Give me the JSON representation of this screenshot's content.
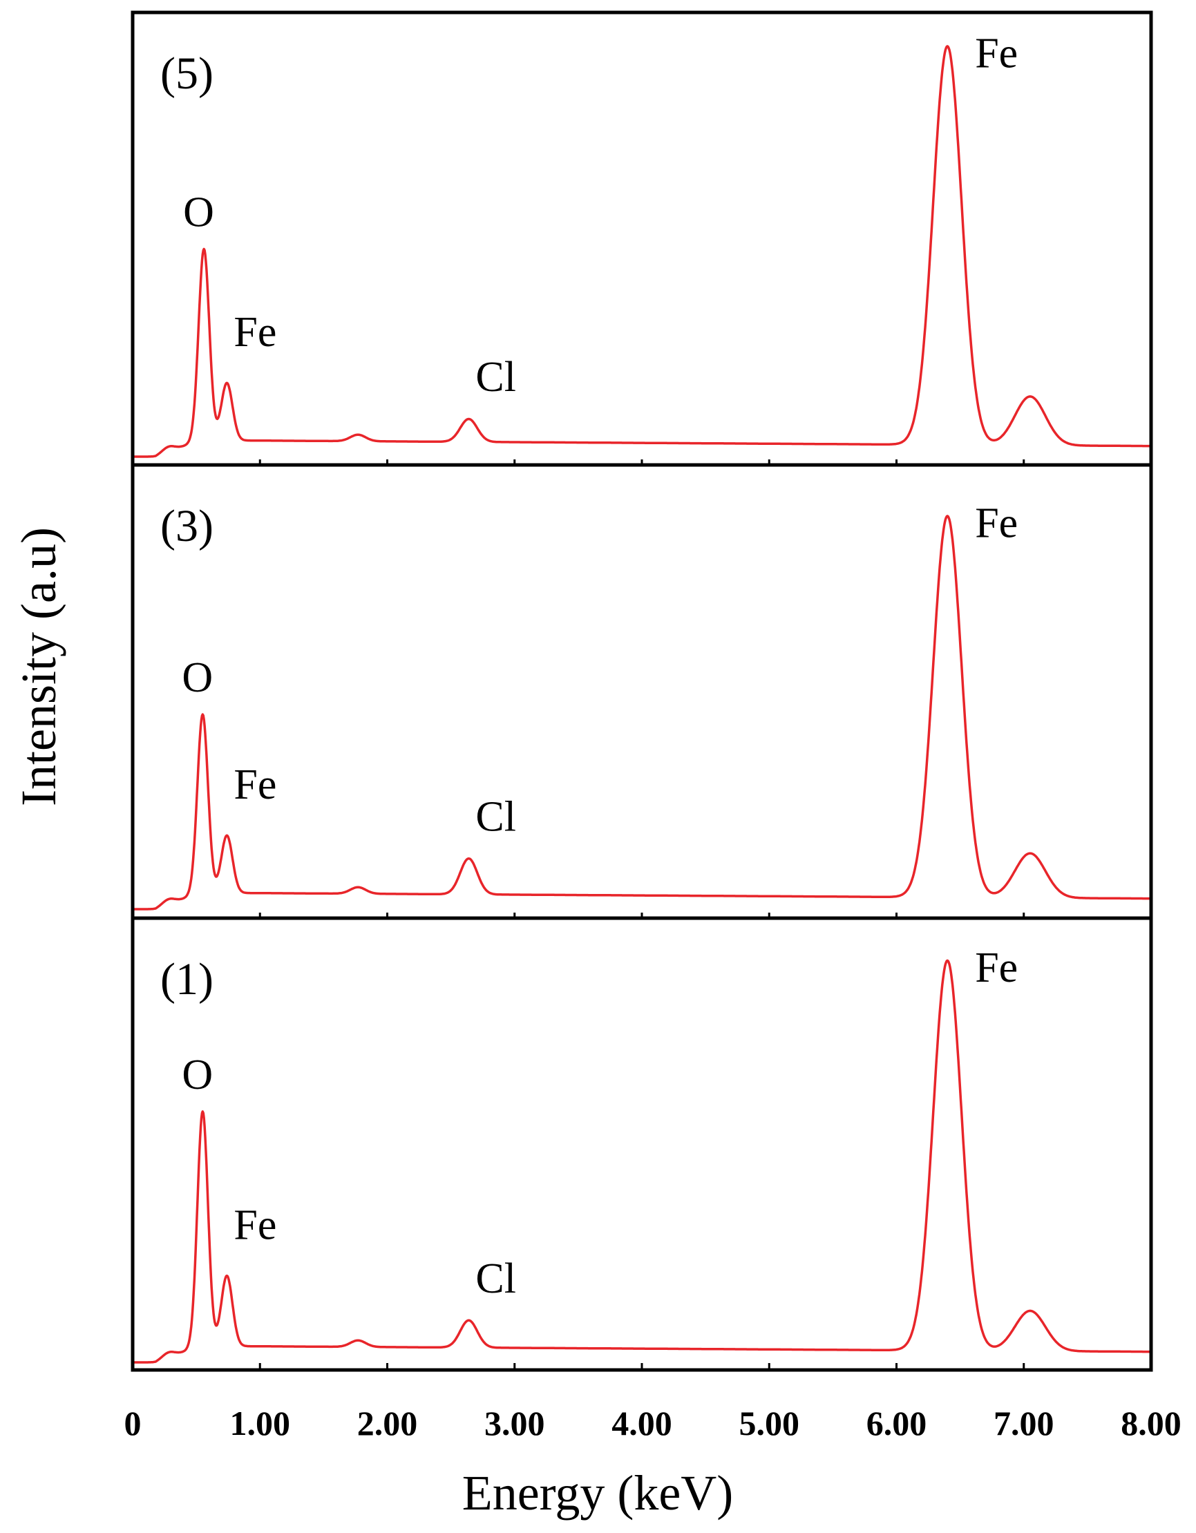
{
  "chart_data": {
    "type": "line",
    "title": "",
    "xlabel": "Energy (keV)",
    "ylabel": "Intensity (a.u)",
    "xlim": [
      0,
      8.0
    ],
    "x_ticks": [
      "0",
      "1.00",
      "2.00",
      "3.00",
      "4.00",
      "5.00",
      "6.00",
      "7.00",
      "8.00"
    ],
    "y_ticks": [],
    "line_color": "#e8252a",
    "grid": false,
    "legend": "none",
    "panels": [
      {
        "label": "(5)",
        "baseline": 0.03,
        "peaks": [
          {
            "element": "O",
            "energy": 0.56,
            "intensity": 0.47,
            "label": "O"
          },
          {
            "element": "Fe",
            "energy": 0.74,
            "intensity": 0.16,
            "label": "Fe"
          },
          {
            "element": "Cl",
            "energy": 2.64,
            "intensity": 0.08,
            "label": "Cl"
          },
          {
            "element": "Fe",
            "energy": 6.4,
            "intensity": 0.95,
            "label": "Fe"
          },
          {
            "element": "Fe",
            "energy": 7.05,
            "intensity": 0.14,
            "label": ""
          }
        ]
      },
      {
        "label": "(3)",
        "baseline": 0.03,
        "peaks": [
          {
            "element": "O",
            "energy": 0.55,
            "intensity": 0.44,
            "label": "O"
          },
          {
            "element": "Fe",
            "energy": 0.74,
            "intensity": 0.16,
            "label": "Fe"
          },
          {
            "element": "Cl",
            "energy": 2.64,
            "intensity": 0.11,
            "label": "Cl"
          },
          {
            "element": "Fe",
            "energy": 6.4,
            "intensity": 0.91,
            "label": "Fe"
          },
          {
            "element": "Fe",
            "energy": 7.05,
            "intensity": 0.13,
            "label": ""
          }
        ]
      },
      {
        "label": "(1)",
        "baseline": 0.03,
        "peaks": [
          {
            "element": "O",
            "energy": 0.55,
            "intensity": 0.57,
            "label": "O"
          },
          {
            "element": "Fe",
            "energy": 0.74,
            "intensity": 0.19,
            "label": "Fe"
          },
          {
            "element": "Cl",
            "energy": 2.64,
            "intensity": 0.09,
            "label": "Cl"
          },
          {
            "element": "Fe",
            "energy": 6.4,
            "intensity": 0.93,
            "label": "Fe"
          },
          {
            "element": "Fe",
            "energy": 7.05,
            "intensity": 0.12,
            "label": ""
          }
        ]
      }
    ]
  }
}
